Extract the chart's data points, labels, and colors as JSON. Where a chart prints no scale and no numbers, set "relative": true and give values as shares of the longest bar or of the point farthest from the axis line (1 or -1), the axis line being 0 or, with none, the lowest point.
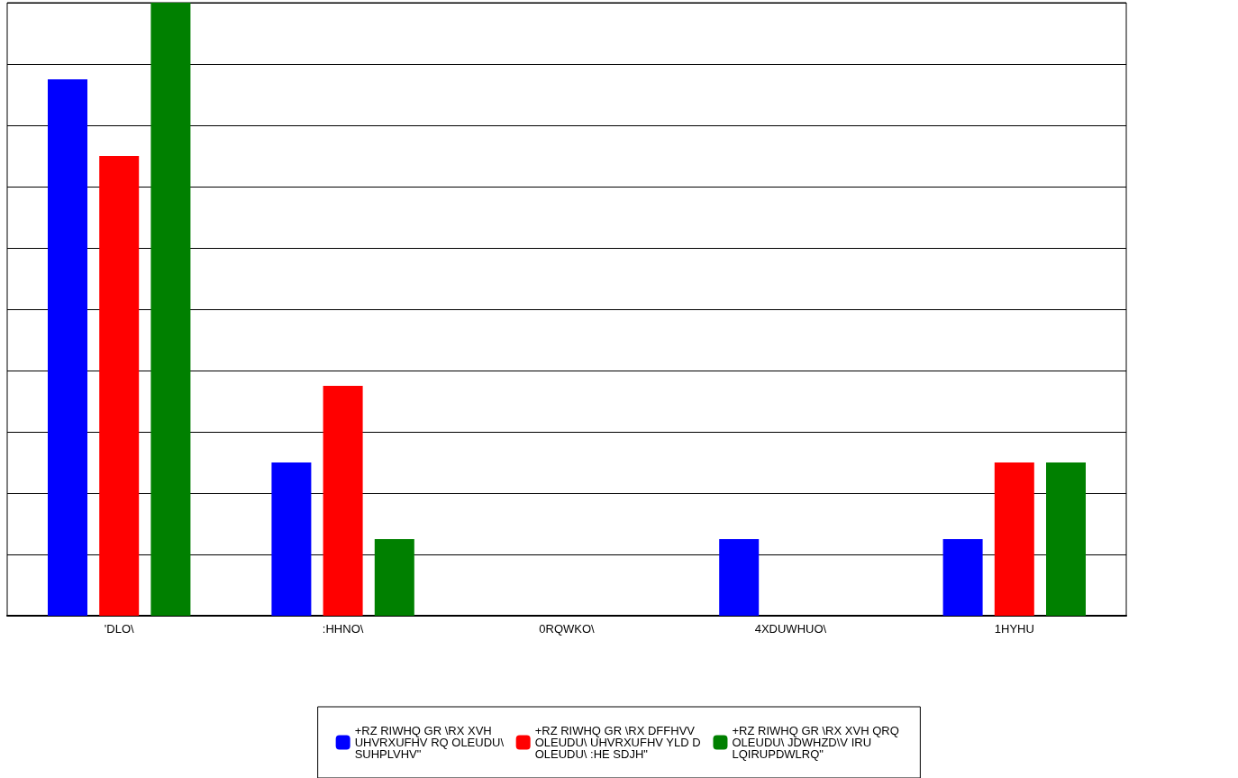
{
  "chart_data": {
    "type": "bar",
    "relative": true,
    "grid": true,
    "legend": "bottom",
    "categories": [
      "'DLO\\",
      ":HHNO\\",
      "0RQWKO\\",
      "4XDUWHUO\\",
      "1HYHU"
    ],
    "series": [
      {
        "name": "+RZ RIWHQ GR \\RX XVH UHVRXUFHV RQ OLEUDU\\ SUHPLVHV\"",
        "color": "#0000ff",
        "values": [
          0.875,
          0.25,
          0,
          0.125,
          0.125
        ]
      },
      {
        "name": "+RZ RIWHQ GR \\RX DFFHVV OLEUDU\\ UHVRXUFHV YLD D OLEUDU\\ :HE SDJH\"",
        "color": "#ff0000",
        "values": [
          0.75,
          0.375,
          0,
          null,
          0.25
        ]
      },
      {
        "name": "+RZ RIWHQ GR \\RX XVH QRQ OLEUDU\\ JDWHZD\\V IRU LQIRUPDWLRQ\"",
        "color": "#008000",
        "values": [
          1,
          0.125,
          0,
          null,
          0.25
        ]
      }
    ]
  }
}
